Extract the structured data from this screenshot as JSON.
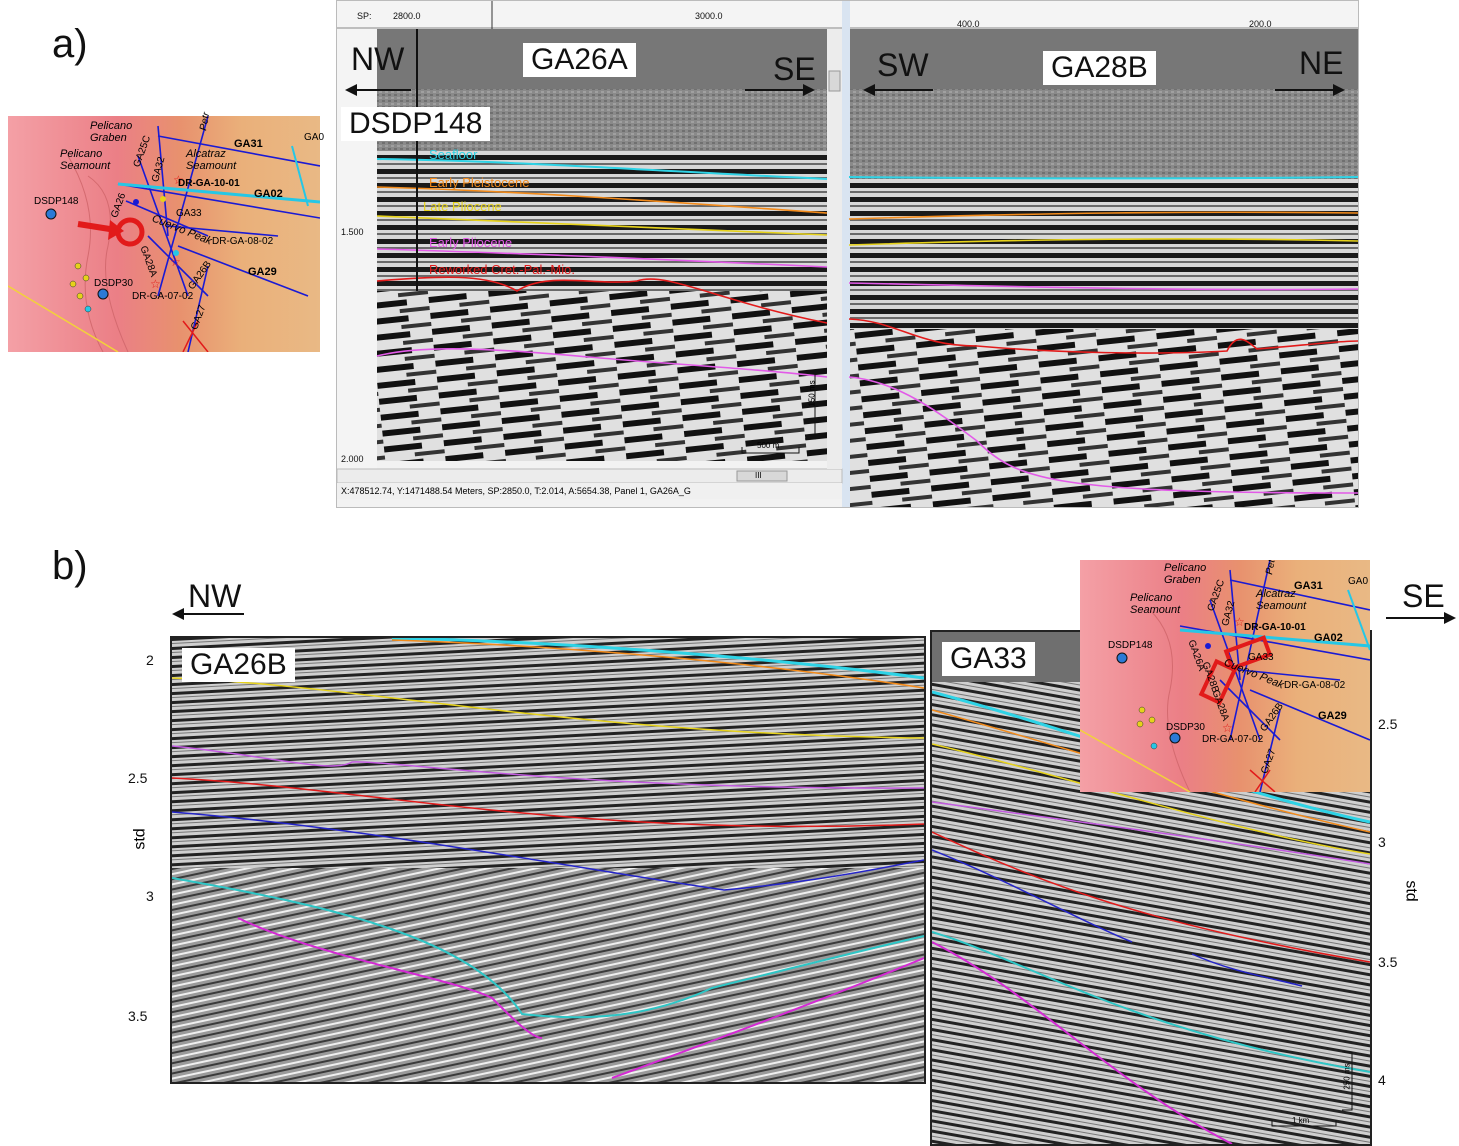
{
  "panel_a": {
    "letter": "a)",
    "left_section": {
      "dir_left": "NW",
      "dir_right": "SE",
      "line": "GA26A",
      "well": "DSDP148"
    },
    "right_section": {
      "dir_left": "SW",
      "dir_right": "NE",
      "line": "GA28B"
    },
    "sp_label": "SP:",
    "sp_ticks_left": [
      "2800.0",
      "3000.0"
    ],
    "sp_ticks_right": [
      "400.0",
      "200.0"
    ],
    "time_ticks": [
      "1.500",
      "2.000"
    ],
    "horizons": [
      {
        "name": "Seafloor",
        "color": "#2ed3e6"
      },
      {
        "name": "Early Pleistocene",
        "color": "#f28a1a"
      },
      {
        "name": "Late Pliocene",
        "color": "#e6d21a"
      },
      {
        "name": "Early Pliocene",
        "color": "#e25ae8"
      },
      {
        "name": "Reworked Cret.-Pal.-Mio.",
        "color": "#e21a1a"
      }
    ],
    "scale_time": "150 ms",
    "scale_dist": "500 m",
    "status_bar": "X:478512.74, Y:1471488.54 Meters,   SP:2850.0,  T:2.014,  A:5654.38,  Panel 1,  GA26A_G",
    "scrollbar_thumb": "III"
  },
  "panel_b": {
    "letter": "b)",
    "dir_left": "NW",
    "dir_right": "SE",
    "left_section": {
      "line": "GA26B",
      "axis_label": "std",
      "ticks": [
        "2",
        "2.5",
        "3",
        "3.5"
      ]
    },
    "right_section": {
      "line": "GA33",
      "axis_label": "std",
      "ticks": [
        "2.5",
        "3",
        "3.5",
        "4"
      ],
      "scale_time": "250 ms",
      "scale_dist": "1 km"
    }
  },
  "map": {
    "labels": {
      "pelicano_graben": "Pelicano Graben",
      "pelicano_seamount": "Pelicano Seamount",
      "alcatraz_seamount": "Alcatraz Seamount",
      "cuervo_peak": "Cuervo Peak",
      "petr": "Petr",
      "dsdp148": "DSDP148",
      "dsdp30": "DSDP30",
      "dr_ga_10_01": "DR-GA-10-01",
      "dr_ga_08_02": "DR-GA-08-02",
      "dr_ga_07_02": "DR-GA-07-02",
      "ga31": "GA31",
      "ga0": "GA0",
      "ga02": "GA02",
      "ga25c": "GA25C",
      "ga32": "GA32",
      "ga33": "GA33",
      "ga26": "GA26",
      "ga26a": "GA26A",
      "ga28b": "GA28B",
      "ga28a": "GA28A",
      "ga26b": "GA26B",
      "ga29": "GA29",
      "ga27": "GA27"
    }
  }
}
